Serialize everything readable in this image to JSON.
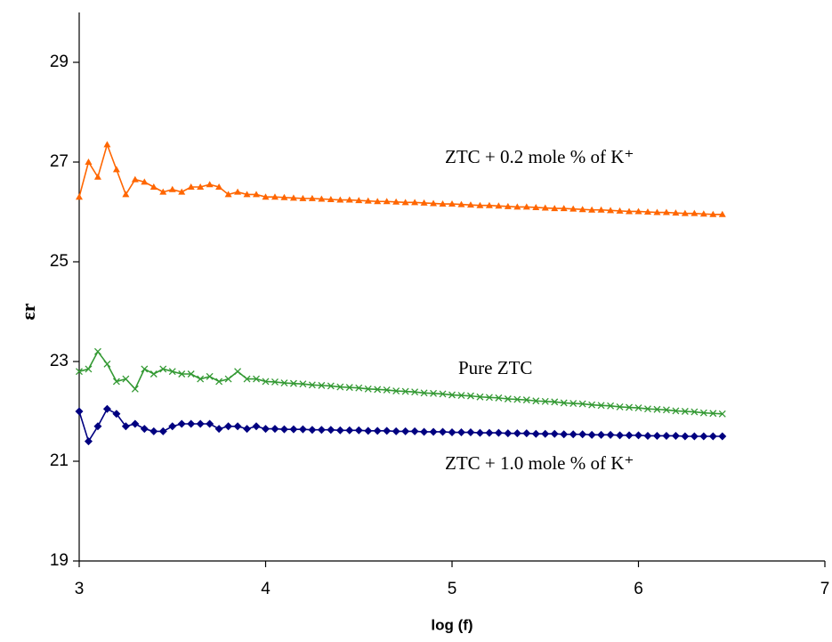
{
  "chart_data": {
    "type": "line",
    "xlabel": "log (f)",
    "ylabel": "εr",
    "x": [
      3,
      3.05,
      3.1,
      3.15,
      3.2,
      3.25,
      3.3,
      3.35,
      3.4,
      3.45,
      3.5,
      3.55,
      3.6,
      3.65,
      3.7,
      3.75,
      3.8,
      3.85,
      3.9,
      3.95,
      4,
      4.05,
      4.1,
      4.15,
      4.2,
      4.25,
      4.3,
      4.35,
      4.4,
      4.45,
      4.5,
      4.55,
      4.6,
      4.65,
      4.7,
      4.75,
      4.8,
      4.85,
      4.9,
      4.95,
      5,
      5.05,
      5.1,
      5.15,
      5.2,
      5.25,
      5.3,
      5.35,
      5.4,
      5.45,
      5.5,
      5.55,
      5.6,
      5.65,
      5.7,
      5.75,
      5.8,
      5.85,
      5.9,
      5.95,
      6,
      6.05,
      6.1,
      6.15,
      6.2,
      6.25,
      6.3,
      6.35,
      6.4,
      6.45
    ],
    "series": [
      {
        "name": "ZTC + 0.2 mole % of K⁺",
        "color": "#ff6600",
        "marker": "triangle",
        "values": [
          26.3,
          27.0,
          26.7,
          27.35,
          26.85,
          26.35,
          26.65,
          26.6,
          26.5,
          26.4,
          26.45,
          26.4,
          26.5,
          26.5,
          26.55,
          26.5,
          26.35,
          26.4,
          26.35,
          26.35,
          26.3,
          26.3,
          26.29,
          26.28,
          26.27,
          26.27,
          26.26,
          26.25,
          26.24,
          26.24,
          26.23,
          26.22,
          26.21,
          26.21,
          26.2,
          26.19,
          26.19,
          26.18,
          26.17,
          26.16,
          26.16,
          26.15,
          26.14,
          26.13,
          26.13,
          26.12,
          26.11,
          26.1,
          26.1,
          26.09,
          26.08,
          26.07,
          26.07,
          26.06,
          26.05,
          26.04,
          26.04,
          26.03,
          26.02,
          26.01,
          26.01,
          26.0,
          25.99,
          25.99,
          25.98,
          25.97,
          25.97,
          25.96,
          25.95,
          25.95
        ]
      },
      {
        "name": "Pure ZTC",
        "color": "#339933",
        "marker": "x",
        "values": [
          22.8,
          22.85,
          23.2,
          22.95,
          22.6,
          22.65,
          22.45,
          22.85,
          22.75,
          22.85,
          22.8,
          22.75,
          22.75,
          22.65,
          22.7,
          22.6,
          22.65,
          22.8,
          22.65,
          22.65,
          22.6,
          22.59,
          22.57,
          22.56,
          22.55,
          22.53,
          22.52,
          22.51,
          22.49,
          22.48,
          22.47,
          22.45,
          22.44,
          22.43,
          22.41,
          22.4,
          22.39,
          22.37,
          22.36,
          22.35,
          22.33,
          22.32,
          22.31,
          22.29,
          22.28,
          22.27,
          22.25,
          22.24,
          22.23,
          22.21,
          22.2,
          22.19,
          22.17,
          22.16,
          22.15,
          22.13,
          22.12,
          22.11,
          22.09,
          22.08,
          22.07,
          22.05,
          22.04,
          22.03,
          22.01,
          22.0,
          21.99,
          21.97,
          21.96,
          21.95
        ]
      },
      {
        "name": "ZTC + 1.0 mole % of K⁺",
        "color": "#000080",
        "marker": "diamond",
        "values": [
          22.0,
          21.4,
          21.7,
          22.05,
          21.95,
          21.7,
          21.75,
          21.65,
          21.6,
          21.6,
          21.7,
          21.75,
          21.75,
          21.75,
          21.75,
          21.65,
          21.7,
          21.7,
          21.65,
          21.7,
          21.65,
          21.65,
          21.64,
          21.64,
          21.64,
          21.63,
          21.63,
          21.63,
          21.62,
          21.62,
          21.62,
          21.61,
          21.61,
          21.61,
          21.6,
          21.6,
          21.6,
          21.59,
          21.59,
          21.59,
          21.58,
          21.58,
          21.58,
          21.57,
          21.57,
          21.57,
          21.56,
          21.56,
          21.56,
          21.55,
          21.55,
          21.55,
          21.54,
          21.54,
          21.54,
          21.53,
          21.53,
          21.53,
          21.52,
          21.52,
          21.52,
          21.51,
          21.51,
          21.51,
          21.51,
          21.5,
          21.5,
          21.5,
          21.5,
          21.5
        ]
      }
    ],
    "xlim": [
      3,
      7
    ],
    "xticks": [
      3,
      4,
      5,
      6,
      7
    ],
    "ylim": [
      19,
      30
    ],
    "yticks": [
      19,
      21,
      23,
      25,
      27,
      29
    ],
    "grid": false
  }
}
